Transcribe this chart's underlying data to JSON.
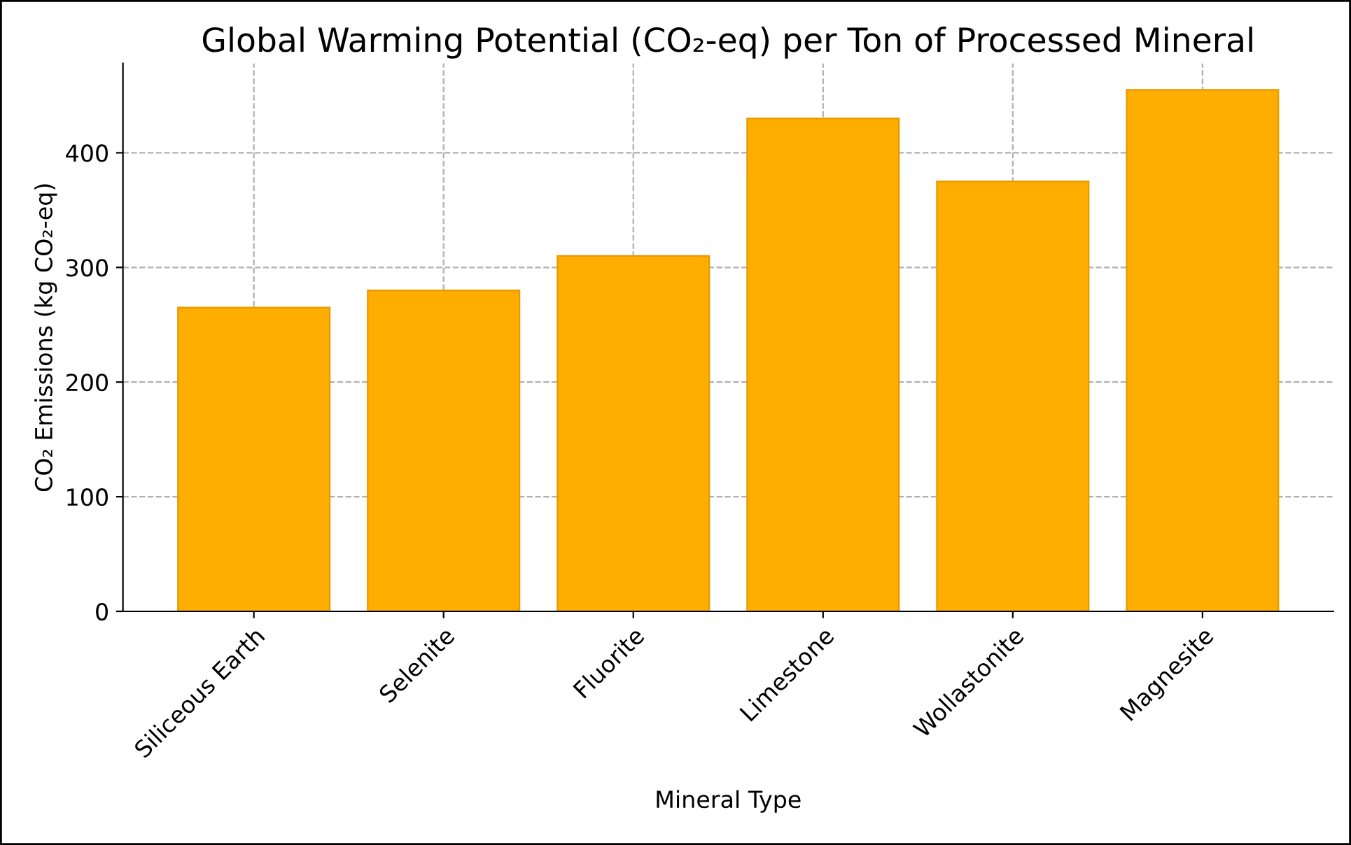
{
  "chart_data": {
    "type": "bar",
    "title": "Global Warming Potential (CO₂-eq) per Ton of Processed Mineral",
    "xlabel": "Mineral Type",
    "ylabel": "CO₂ Emissions (kg CO₂-eq)",
    "categories": [
      "Siliceous Earth",
      "Selenite",
      "Fluorite",
      "Limestone",
      "Wollastonite",
      "Magnesite"
    ],
    "values": [
      265,
      280,
      310,
      430,
      375,
      455
    ],
    "color": "#ffad00",
    "ylim": [
      0,
      478
    ],
    "yticks": [
      0,
      100,
      200,
      300,
      400
    ],
    "grid": true
  }
}
